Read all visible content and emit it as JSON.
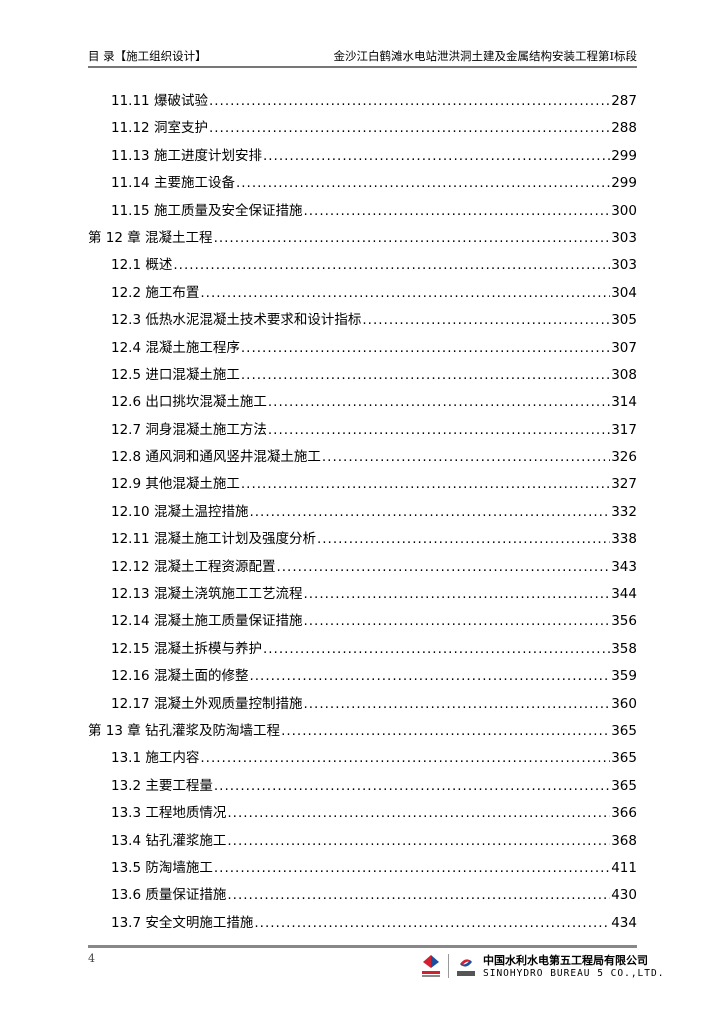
{
  "header": {
    "left": "目 录【施工组织设计】",
    "right": "金沙江白鹤滩水电站泄洪洞土建及金属结构安装工程第Ⅰ标段"
  },
  "toc": [
    {
      "label": "11.11 爆破试验",
      "page": "287",
      "level": 2
    },
    {
      "label": "11.12 洞室支护",
      "page": "288",
      "level": 2
    },
    {
      "label": "11.13 施工进度计划安排",
      "page": "299",
      "level": 2
    },
    {
      "label": "11.14 主要施工设备",
      "page": "299",
      "level": 2
    },
    {
      "label": "11.15 施工质量及安全保证措施",
      "page": "300",
      "level": 2
    },
    {
      "label": "第 12 章 混凝土工程",
      "page": "303",
      "level": 1
    },
    {
      "label": "12.1 概述",
      "page": "303",
      "level": 2
    },
    {
      "label": "12.2 施工布置",
      "page": "304",
      "level": 2
    },
    {
      "label": "12.3 低热水泥混凝土技术要求和设计指标",
      "page": "305",
      "level": 2
    },
    {
      "label": "12.4 混凝土施工程序",
      "page": "307",
      "level": 2
    },
    {
      "label": "12.5 进口混凝土施工",
      "page": "308",
      "level": 2
    },
    {
      "label": "12.6 出口挑坎混凝土施工",
      "page": "314",
      "level": 2
    },
    {
      "label": "12.7 洞身混凝土施工方法",
      "page": "317",
      "level": 2
    },
    {
      "label": "12.8 通风洞和通风竖井混凝土施工",
      "page": "326",
      "level": 2
    },
    {
      "label": "12.9 其他混凝土施工",
      "page": "327",
      "level": 2
    },
    {
      "label": "12.10 混凝土温控措施",
      "page": "332",
      "level": 2
    },
    {
      "label": "12.11 混凝土施工计划及强度分析",
      "page": "338",
      "level": 2
    },
    {
      "label": "12.12 混凝土工程资源配置",
      "page": "343",
      "level": 2
    },
    {
      "label": "12.13 混凝土浇筑施工工艺流程",
      "page": "344",
      "level": 2
    },
    {
      "label": "12.14 混凝土施工质量保证措施",
      "page": "356",
      "level": 2
    },
    {
      "label": "12.15 混凝土拆模与养护",
      "page": "358",
      "level": 2
    },
    {
      "label": "12.16 混凝土面的修整",
      "page": "359",
      "level": 2
    },
    {
      "label": "12.17 混凝土外观质量控制措施",
      "page": "360",
      "level": 2
    },
    {
      "label": "第 13 章 钻孔灌浆及防淘墙工程",
      "page": "365",
      "level": 1
    },
    {
      "label": "13.1 施工内容",
      "page": "365",
      "level": 2
    },
    {
      "label": "13.2 主要工程量",
      "page": "365",
      "level": 2
    },
    {
      "label": "13.3 工程地质情况",
      "page": "366",
      "level": 2
    },
    {
      "label": "13.4 钻孔灌浆施工",
      "page": "368",
      "level": 2
    },
    {
      "label": "13.5 防淘墙施工",
      "page": "411",
      "level": 2
    },
    {
      "label": "13.6 质量保证措施",
      "page": "430",
      "level": 2
    },
    {
      "label": "13.7 安全文明施工措施",
      "page": "434",
      "level": 2
    }
  ],
  "footer": {
    "page_number": "4",
    "company_cn": "中国水利水电第五工程局有限公司",
    "company_en": "SINOHYDRO BUREAU 5 CO.,LTD.",
    "colors": {
      "red": "#d2202f",
      "blue": "#1f4e9c"
    }
  }
}
